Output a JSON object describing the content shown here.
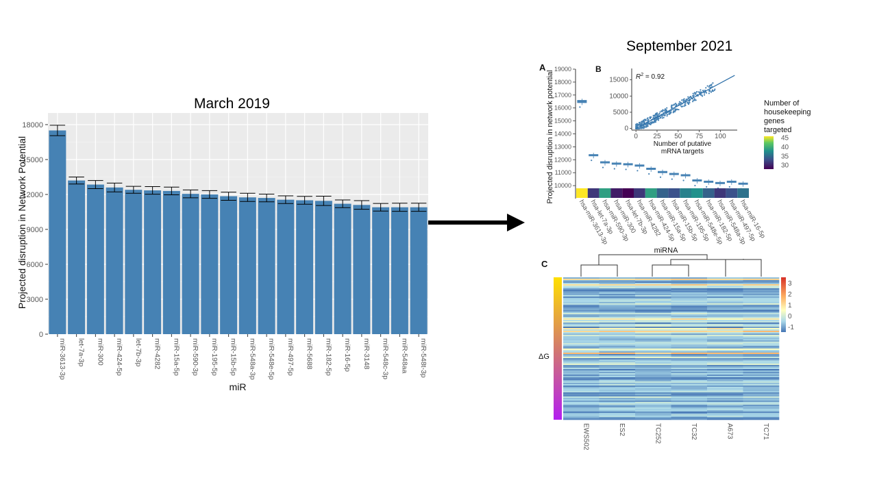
{
  "headings": {
    "left": "March 2019",
    "right": "September 2021"
  },
  "chart_data": [
    {
      "type": "bar",
      "title": "March 2019",
      "xlabel": "miR",
      "ylabel": "Projected disruption in Network Potential",
      "ylim": [
        0,
        19000
      ],
      "yticks": [
        0,
        3000,
        6000,
        9000,
        12000,
        15000,
        18000
      ],
      "grid": true,
      "categories": [
        "miR-3613-3p",
        "let-7a-3p",
        "miR-300",
        "miR-424-5p",
        "let-7b-3p",
        "miR-4282",
        "miR-15a-5p",
        "miR-590-3p",
        "miR-195-5p",
        "miR-15b-5p",
        "miR-548a-3p",
        "miR-548e-5p",
        "miR-497-5p",
        "miR-5688",
        "miR-182-5p",
        "miR-16-5p",
        "miR-3148",
        "miR-548c-3p",
        "miR-548aa",
        "miR-548t-3p"
      ],
      "values": [
        17500,
        13200,
        12850,
        12600,
        12400,
        12350,
        12300,
        12050,
        12000,
        11850,
        11750,
        11700,
        11550,
        11500,
        11450,
        11200,
        11100,
        10900,
        10900,
        10900
      ],
      "errors": [
        450,
        300,
        350,
        380,
        300,
        330,
        330,
        340,
        330,
        350,
        350,
        330,
        330,
        340,
        400,
        330,
        370,
        330,
        350,
        350
      ],
      "color": "#4682b4"
    },
    {
      "type": "box",
      "panel": "A",
      "ylabel": "Projected disruption in network potential",
      "xlabel": "miRNA",
      "ylim": [
        9000,
        19000
      ],
      "yticks": [
        10000,
        11000,
        12000,
        13000,
        14000,
        15000,
        16000,
        17000,
        18000,
        19000
      ],
      "categories": [
        "hsa-miR-3613-3p",
        "hsa-let-7a-3p",
        "hsa-miR-590-3p",
        "hsa-miR-300",
        "hsa-let-7b-3p",
        "hsa-miR-4282",
        "hsa-miR-424-5p",
        "hsa-miR-15a-5p",
        "hsa-miR-15b-5p",
        "hsa-miR-195-5p",
        "hsa-miR-548e-5p",
        "hsa-miR-182-5p",
        "hsa-miR-548a-3p",
        "hsa-miR-497-5p",
        "hsa-miR-16-5p"
      ],
      "medians": [
        16500,
        12350,
        11800,
        11700,
        11650,
        11550,
        11300,
        11050,
        10900,
        10800,
        10400,
        10300,
        10200,
        10300,
        10150
      ],
      "housekeeping_targets": [
        45,
        31,
        37,
        30,
        29,
        31,
        37,
        33,
        32,
        35,
        36,
        33,
        31,
        32,
        34
      ],
      "legend": {
        "title": "Number of housekeeping genes targeted",
        "ticks": [
          45,
          40,
          35,
          30
        ],
        "colors": [
          "#fde725",
          "#5ec962",
          "#21918c",
          "#3b528b",
          "#440154"
        ]
      },
      "color": "#4682b4"
    },
    {
      "type": "scatter",
      "panel": "B",
      "annotation_label": "R",
      "annotation_sup": "2",
      "annotation_value": " = 0.92",
      "xlabel": "Number of putative mRNA targets",
      "xlim": [
        -5,
        120
      ],
      "ylim": [
        -500,
        18500
      ],
      "xticks": [
        0,
        25,
        50,
        75,
        100
      ],
      "yticks": [
        0,
        5000,
        10000,
        15000
      ],
      "fit": {
        "slope": 140,
        "intercept": 0
      },
      "color": "#4682b4"
    },
    {
      "type": "heatmap",
      "panel": "C",
      "columns": [
        "EWS502",
        "ES2",
        "TC252",
        "TC32",
        "A673",
        "TC71"
      ],
      "row_label": "ΔG",
      "color_scale": {
        "ticks": [
          3,
          2,
          1,
          0,
          -1
        ],
        "colors": [
          "#4575b4",
          "#e0f3f8",
          "#ffffbf",
          "#fee090",
          "#f46d43",
          "#d73027"
        ]
      }
    }
  ]
}
